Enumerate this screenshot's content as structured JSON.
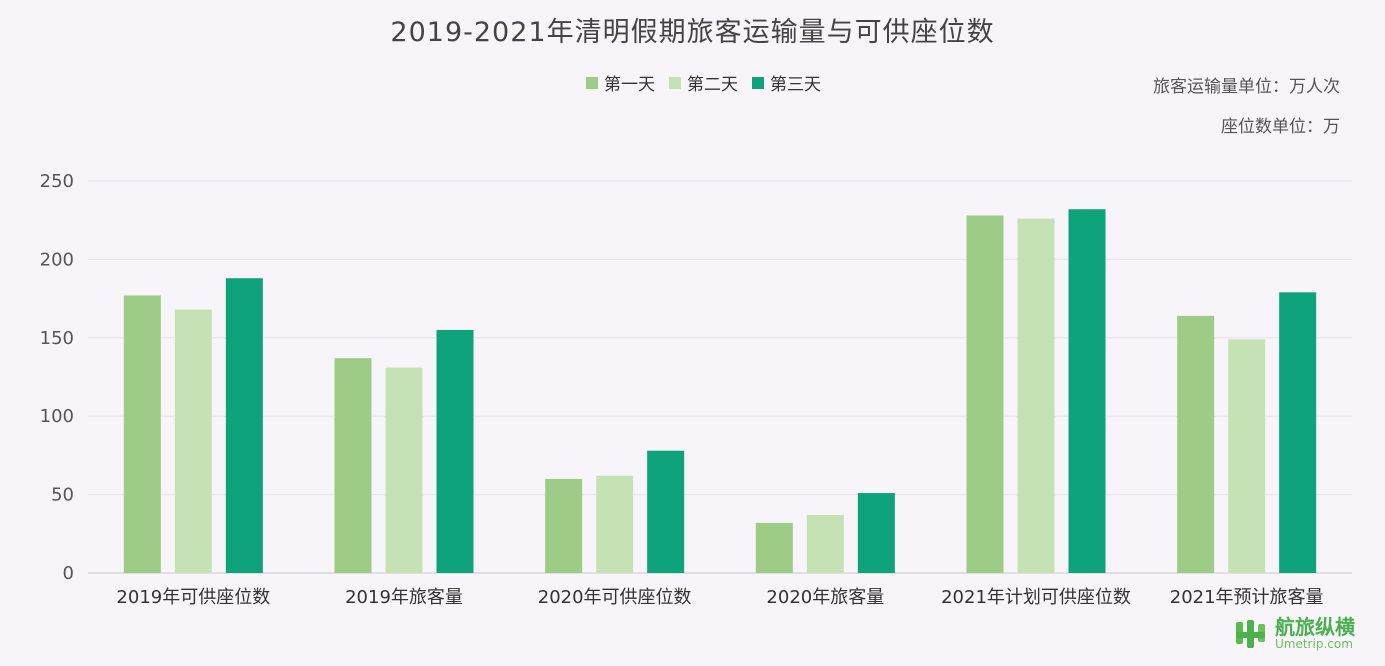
{
  "colors": {
    "day1": "#9ccc85",
    "day2": "#c5e2b5",
    "day3": "#0fa37c",
    "grid": "#e6e3ea",
    "axis": "#c9c6cc"
  },
  "units": {
    "passenger": "旅客运输量单位：万人次",
    "seats": "座位数单位：万"
  },
  "logo": {
    "name_cn": "航旅纵横",
    "name_en": "Umetrip.com",
    "icon": "umetrip-logo-icon"
  },
  "chart_data": {
    "type": "bar",
    "title": "2019-2021年清明假期旅客运输量与可供座位数",
    "categories": [
      "2019年可供座位数",
      "2019年旅客量",
      "2020年可供座位数",
      "2020年旅客量",
      "2021年计划可供座位数",
      "2021年预计旅客量"
    ],
    "series": [
      {
        "name": "第一天",
        "values": [
          177,
          137,
          60,
          32,
          228,
          164
        ]
      },
      {
        "name": "第二天",
        "values": [
          168,
          131,
          62,
          37,
          226,
          149
        ]
      },
      {
        "name": "第三天",
        "values": [
          188,
          155,
          78,
          51,
          232,
          179
        ]
      }
    ],
    "ylim": [
      0,
      250
    ],
    "yticks": [
      "0",
      "50",
      "100",
      "150",
      "200",
      "250"
    ],
    "grid": true,
    "legend_position": "top-center"
  }
}
